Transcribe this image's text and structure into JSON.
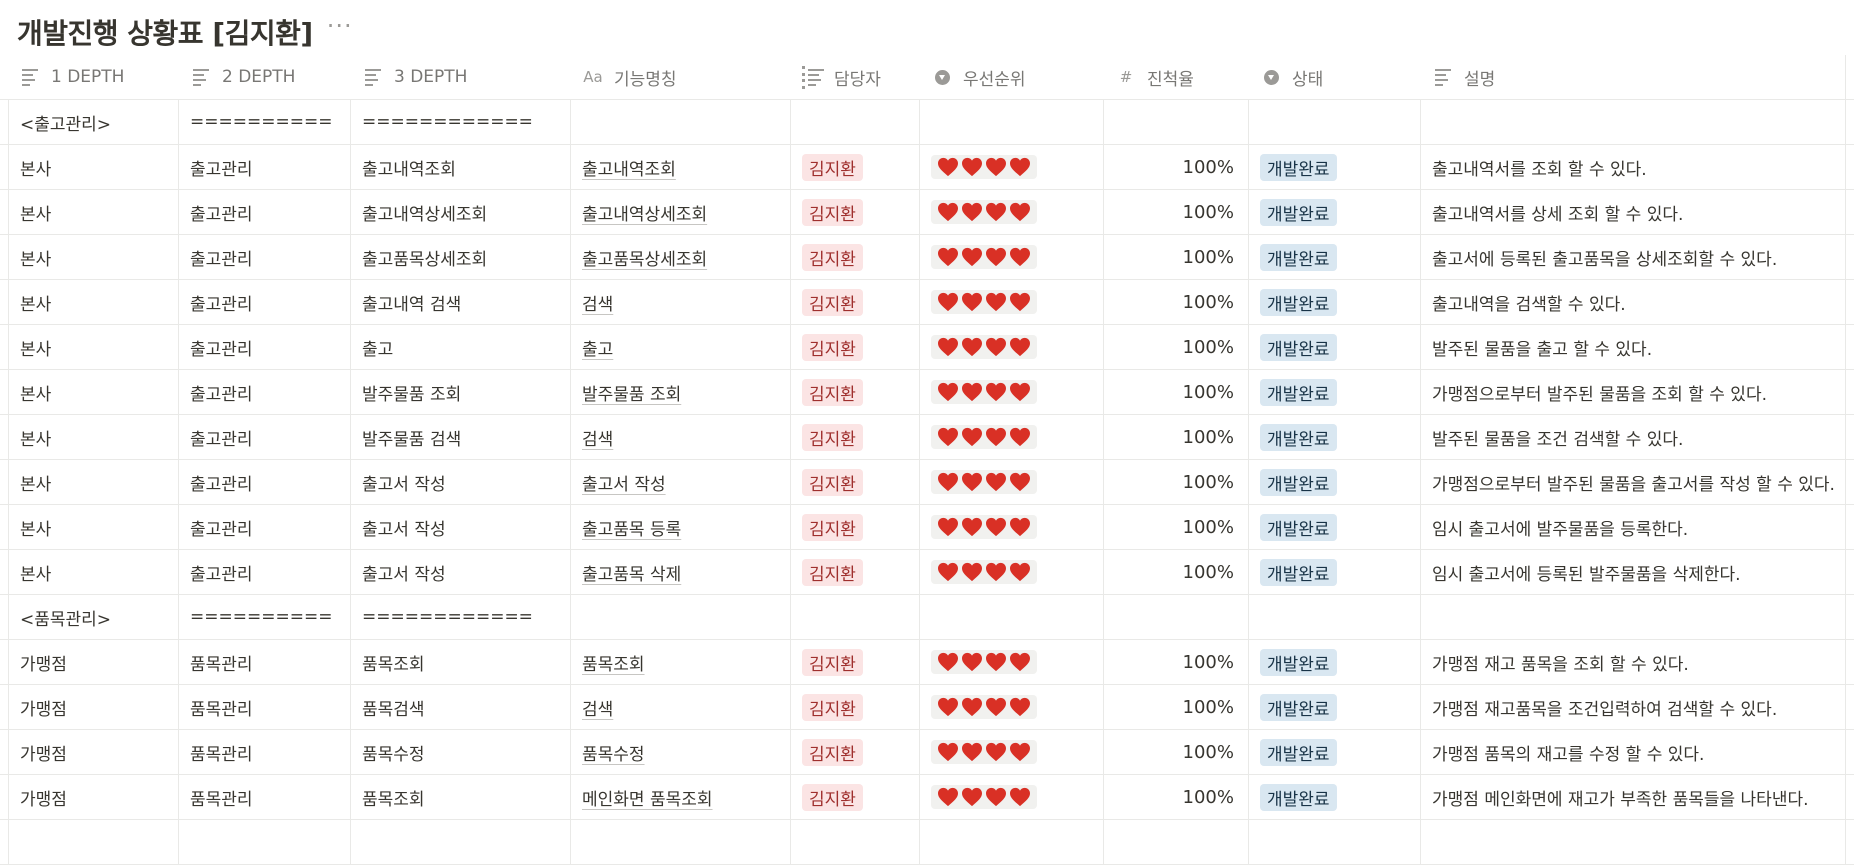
{
  "page": {
    "title": "개발진행 상황표 [김지환]",
    "more_icon": "more-horizontal-icon"
  },
  "colors": {
    "person_tag_bg": "#fbe4e4",
    "status_tag_bg": "#d9e7f1",
    "heart": "#d93025"
  },
  "columns": [
    {
      "label": "1 DEPTH",
      "icon": "text-lines-icon"
    },
    {
      "label": "2 DEPTH",
      "icon": "text-lines-icon"
    },
    {
      "label": "3 DEPTH",
      "icon": "text-lines-icon"
    },
    {
      "label": "기능명칭",
      "icon": "title-aa-icon",
      "icon_text": "Aa"
    },
    {
      "label": "담당자",
      "icon": "list-icon"
    },
    {
      "label": "우선순위",
      "icon": "select-icon"
    },
    {
      "label": "진척율",
      "icon": "number-hash-icon",
      "icon_text": "#"
    },
    {
      "label": "상태",
      "icon": "select-icon"
    },
    {
      "label": "설명",
      "icon": "text-lines-icon"
    }
  ],
  "rows": [
    {
      "type": "section",
      "d1": "<출고관리>",
      "d2": "==========",
      "d3": "============"
    },
    {
      "d1": "본사",
      "d2": "출고관리",
      "d3": "출고내역조회",
      "name": "출고내역조회",
      "owner": "김지환",
      "priority_hearts": 4,
      "progress": "100%",
      "status": "개발완료",
      "desc": "출고내역서를 조회 할 수 있다."
    },
    {
      "d1": "본사",
      "d2": "출고관리",
      "d3": "출고내역상세조회",
      "name": "출고내역상세조회",
      "owner": "김지환",
      "priority_hearts": 4,
      "progress": "100%",
      "status": "개발완료",
      "desc": "출고내역서를 상세 조회 할 수 있다."
    },
    {
      "d1": "본사",
      "d2": "출고관리",
      "d3": "출고품목상세조회",
      "name": "출고품목상세조회",
      "owner": "김지환",
      "priority_hearts": 4,
      "progress": "100%",
      "status": "개발완료",
      "desc": "출고서에 등록된 출고품목을 상세조회할 수 있다."
    },
    {
      "d1": "본사",
      "d2": "출고관리",
      "d3": "출고내역 검색",
      "name": "검색",
      "owner": "김지환",
      "priority_hearts": 4,
      "progress": "100%",
      "status": "개발완료",
      "desc": "출고내역을 검색할 수 있다."
    },
    {
      "d1": "본사",
      "d2": "출고관리",
      "d3": "출고",
      "name": "출고",
      "owner": "김지환",
      "priority_hearts": 4,
      "progress": "100%",
      "status": "개발완료",
      "desc": "발주된 물품을 출고 할 수 있다."
    },
    {
      "d1": "본사",
      "d2": "출고관리",
      "d3": "발주물품 조회",
      "name": "발주물품 조회",
      "owner": "김지환",
      "priority_hearts": 4,
      "progress": "100%",
      "status": "개발완료",
      "desc": "가맹점으로부터 발주된 물품을 조회 할 수 있다."
    },
    {
      "d1": "본사",
      "d2": "출고관리",
      "d3": "발주물품 검색",
      "name": "검색",
      "owner": "김지환",
      "priority_hearts": 4,
      "progress": "100%",
      "status": "개발완료",
      "desc": "발주된 물품을 조건 검색할 수 있다."
    },
    {
      "d1": "본사",
      "d2": "출고관리",
      "d3": "출고서 작성",
      "name": "출고서 작성",
      "owner": "김지환",
      "priority_hearts": 4,
      "progress": "100%",
      "status": "개발완료",
      "desc": "가맹점으로부터 발주된 물품을 출고서를 작성 할 수 있다."
    },
    {
      "d1": "본사",
      "d2": "출고관리",
      "d3": "출고서 작성",
      "name": "출고품목 등록",
      "owner": "김지환",
      "priority_hearts": 4,
      "progress": "100%",
      "status": "개발완료",
      "desc": "임시 출고서에 발주물품을 등록한다."
    },
    {
      "d1": "본사",
      "d2": "출고관리",
      "d3": "출고서 작성",
      "name": "출고품목 삭제",
      "owner": "김지환",
      "priority_hearts": 4,
      "progress": "100%",
      "status": "개발완료",
      "desc": "임시 출고서에 등록된 발주물품을 삭제한다."
    },
    {
      "type": "section",
      "d1": "<품목관리>",
      "d2": "==========",
      "d3": "============"
    },
    {
      "d1": "가맹점",
      "d2": "품목관리",
      "d3": "품목조회",
      "name": "품목조회",
      "owner": "김지환",
      "priority_hearts": 4,
      "progress": "100%",
      "status": "개발완료",
      "desc": "가맹점 재고 품목을 조회 할 수 있다."
    },
    {
      "d1": "가맹점",
      "d2": "품목관리",
      "d3": "품목검색",
      "name": "검색",
      "owner": "김지환",
      "priority_hearts": 4,
      "progress": "100%",
      "status": "개발완료",
      "desc": "가맹점 재고품목을 조건입력하여 검색할 수 있다."
    },
    {
      "d1": "가맹점",
      "d2": "품목관리",
      "d3": "품목수정",
      "name": "품목수정",
      "owner": "김지환",
      "priority_hearts": 4,
      "progress": "100%",
      "status": "개발완료",
      "desc": "가맹점 품목의 재고를 수정 할 수 있다."
    },
    {
      "d1": "가맹점",
      "d2": "품목관리",
      "d3": "품목조회",
      "name": "메인화면 품목조회",
      "owner": "김지환",
      "priority_hearts": 4,
      "progress": "100%",
      "status": "개발완료",
      "desc": "가맹점 메인화면에 재고가 부족한 품목들을 나타낸다."
    },
    {
      "type": "empty"
    }
  ]
}
